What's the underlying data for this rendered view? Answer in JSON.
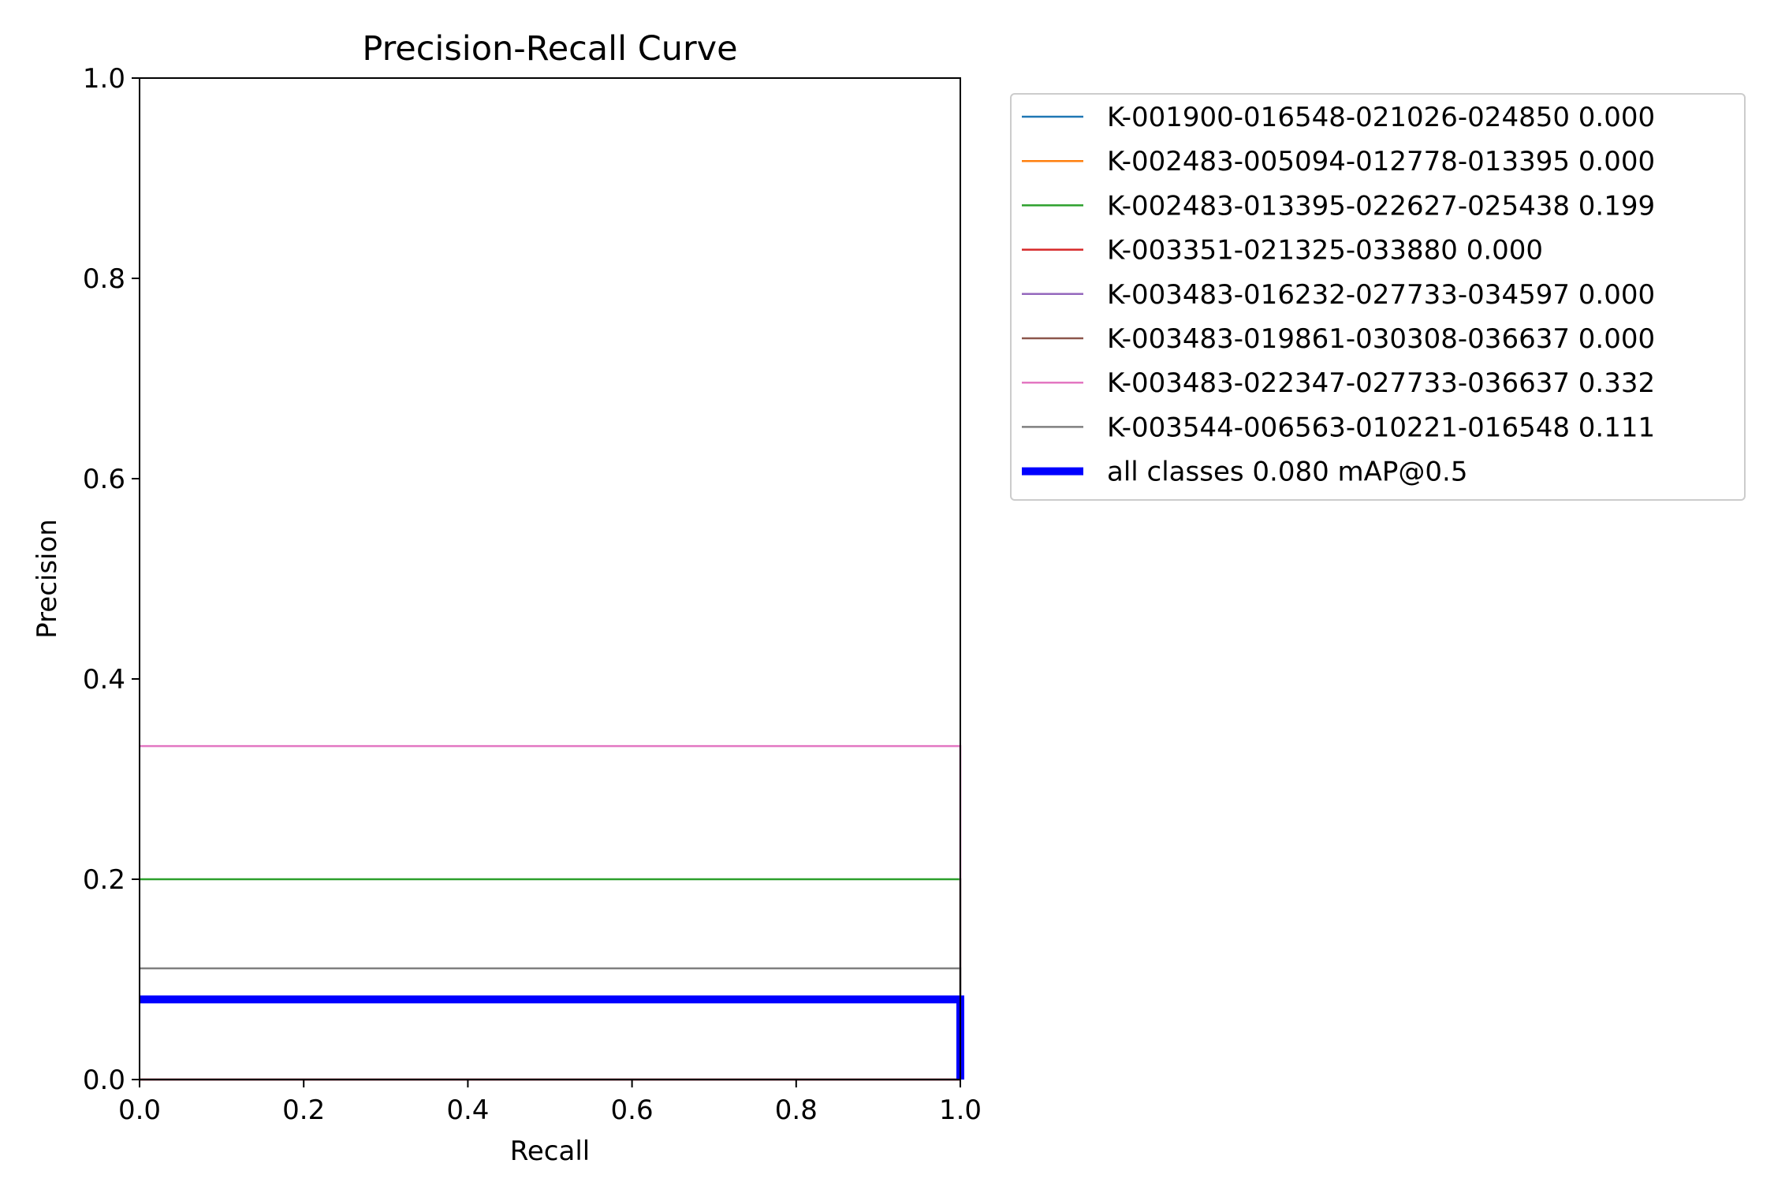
{
  "chart_data": {
    "type": "line",
    "title": "Precision-Recall Curve",
    "xlabel": "Recall",
    "ylabel": "Precision",
    "xlim": [
      0.0,
      1.0
    ],
    "ylim": [
      0.0,
      1.0
    ],
    "xticks": [
      "0.0",
      "0.2",
      "0.4",
      "0.6",
      "0.8",
      "1.0"
    ],
    "yticks": [
      "0.0",
      "0.2",
      "0.4",
      "0.6",
      "0.8",
      "1.0"
    ],
    "grid": false,
    "legend_position": "outside upper right",
    "series": [
      {
        "name": "K-001900-016548-021026-024850 0.000",
        "color": "#1f77b4",
        "bold": false,
        "x": [
          0.0,
          1.0,
          1.0
        ],
        "y": [
          0.0,
          0.0,
          0.0
        ]
      },
      {
        "name": "K-002483-005094-012778-013395 0.000",
        "color": "#ff7f0e",
        "bold": false,
        "x": [
          0.0,
          1.0,
          1.0
        ],
        "y": [
          0.0,
          0.0,
          0.0
        ]
      },
      {
        "name": "K-002483-013395-022627-025438 0.199",
        "color": "#2ca02c",
        "bold": false,
        "x": [
          0.0,
          1.0,
          1.0
        ],
        "y": [
          0.2,
          0.2,
          0.0
        ]
      },
      {
        "name": "K-003351-021325-033880 0.000",
        "color": "#d62728",
        "bold": false,
        "x": [
          0.0,
          1.0,
          1.0
        ],
        "y": [
          0.0,
          0.0,
          0.0
        ]
      },
      {
        "name": "K-003483-016232-027733-034597 0.000",
        "color": "#9467bd",
        "bold": false,
        "x": [
          0.0,
          1.0,
          1.0
        ],
        "y": [
          0.0,
          0.0,
          0.0
        ]
      },
      {
        "name": "K-003483-019861-030308-036637 0.000",
        "color": "#8c564b",
        "bold": false,
        "x": [
          0.0,
          1.0,
          1.0
        ],
        "y": [
          0.0,
          0.0,
          0.0
        ]
      },
      {
        "name": "K-003483-022347-027733-036637 0.332",
        "color": "#e377c2",
        "bold": false,
        "x": [
          0.0,
          1.0,
          1.0
        ],
        "y": [
          0.333,
          0.333,
          0.0
        ]
      },
      {
        "name": "K-003544-006563-010221-016548 0.111",
        "color": "#7f7f7f",
        "bold": false,
        "x": [
          0.0,
          1.0,
          1.0
        ],
        "y": [
          0.111,
          0.111,
          0.0
        ]
      },
      {
        "name": "all classes 0.080 mAP@0.5",
        "color": "#0000ff",
        "bold": true,
        "x": [
          0.0,
          1.0,
          1.0
        ],
        "y": [
          0.08,
          0.08,
          0.0
        ]
      }
    ]
  }
}
